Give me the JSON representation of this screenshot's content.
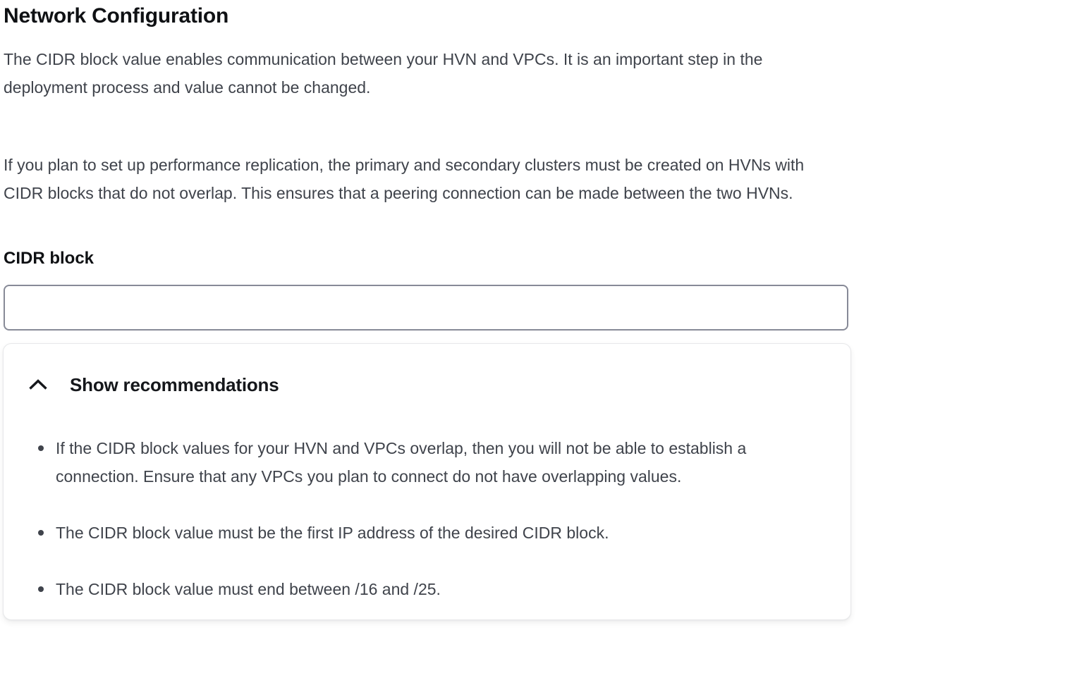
{
  "page": {
    "title": "Network Configuration",
    "intro": "The CIDR block value enables communication between your HVN and VPCs. It is an important step in the deployment process and value cannot be changed.",
    "replication_note": "If you plan to set up performance replication, the primary and secondary clusters must be created on HVNs with CIDR blocks that do not overlap. This ensures that a peering connection can be made between the two HVNs."
  },
  "form": {
    "cidr_block": {
      "label": "CIDR block",
      "value": "",
      "placeholder": ""
    }
  },
  "recommendations": {
    "toggle_label": "Show recommendations",
    "toggle_icon": "chevron-up-icon",
    "expanded": true,
    "items": [
      "If the CIDR block values for your HVN and VPCs overlap, then you will not be able to establish a connection. Ensure that any VPCs you plan to connect do not have overlapping values.",
      "The CIDR block value must be the first IP address of the desired CIDR block.",
      "The CIDR block value must end between /16 and /25."
    ]
  },
  "colors": {
    "heading": "#0f1114",
    "body_text": "#3f434b",
    "input_border": "#878a97",
    "card_border": "#e7e8ea",
    "background": "#ffffff"
  }
}
